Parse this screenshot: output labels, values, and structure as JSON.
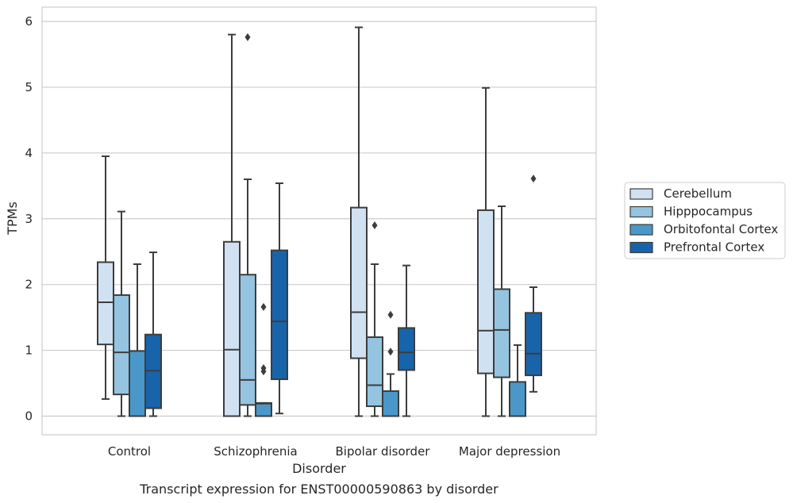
{
  "chart_data": {
    "type": "boxplot",
    "caption": "Transcript expression for ENST00000590863 by disorder",
    "xlabel": "Disorder",
    "ylabel": "TPMs",
    "ylim": [
      -0.28,
      6.22
    ],
    "yticks": [
      0,
      1,
      2,
      3,
      4,
      5,
      6
    ],
    "grid": true,
    "legend_position": "right",
    "categories": [
      "Control",
      "Schizophrenia",
      "Bipolar disorder",
      "Major depression"
    ],
    "series": [
      {
        "name": "Cerebellum",
        "color": "#d0e1f2",
        "boxes": [
          {
            "whisker_low": 0.26,
            "q1": 1.09,
            "median": 1.73,
            "q3": 2.34,
            "whisker_high": 3.95,
            "outliers": []
          },
          {
            "whisker_low": 0.0,
            "q1": 0.0,
            "median": 1.01,
            "q3": 2.65,
            "whisker_high": 5.8,
            "outliers": []
          },
          {
            "whisker_low": 0.0,
            "q1": 0.88,
            "median": 1.58,
            "q3": 3.17,
            "whisker_high": 5.91,
            "outliers": []
          },
          {
            "whisker_low": 0.0,
            "q1": 0.65,
            "median": 1.3,
            "q3": 3.13,
            "whisker_high": 4.99,
            "outliers": []
          }
        ]
      },
      {
        "name": "Hipppocampus",
        "color": "#94c4df",
        "boxes": [
          {
            "whisker_low": 0.0,
            "q1": 0.33,
            "median": 0.97,
            "q3": 1.84,
            "whisker_high": 3.11,
            "outliers": []
          },
          {
            "whisker_low": 0.0,
            "q1": 0.17,
            "median": 0.55,
            "q3": 2.15,
            "whisker_high": 3.6,
            "outliers": [
              5.76
            ]
          },
          {
            "whisker_low": 0.0,
            "q1": 0.15,
            "median": 0.47,
            "q3": 1.2,
            "whisker_high": 2.31,
            "outliers": [
              2.9
            ]
          },
          {
            "whisker_low": 0.0,
            "q1": 0.59,
            "median": 1.31,
            "q3": 1.93,
            "whisker_high": 3.19,
            "outliers": []
          }
        ]
      },
      {
        "name": "Orbitofontal Cortex",
        "color": "#4a98c9",
        "boxes": [
          {
            "whisker_low": 0.0,
            "q1": 0.0,
            "median": 0.0,
            "q3": 0.99,
            "whisker_high": 2.31,
            "outliers": []
          },
          {
            "whisker_low": 0.0,
            "q1": 0.0,
            "median": 0.19,
            "q3": 0.2,
            "whisker_high": 0.2,
            "outliers": [
              1.66,
              0.73,
              0.68
            ]
          },
          {
            "whisker_low": 0.0,
            "q1": 0.0,
            "median": 0.0,
            "q3": 0.38,
            "whisker_high": 0.64,
            "outliers": [
              1.54,
              0.98
            ]
          },
          {
            "whisker_low": 0.0,
            "q1": 0.0,
            "median": 0.0,
            "q3": 0.52,
            "whisker_high": 1.08,
            "outliers": []
          }
        ]
      },
      {
        "name": "Prefrontal Cortex",
        "color": "#1764ab",
        "boxes": [
          {
            "whisker_low": 0.0,
            "q1": 0.12,
            "median": 0.69,
            "q3": 1.24,
            "whisker_high": 2.49,
            "outliers": []
          },
          {
            "whisker_low": 0.04,
            "q1": 0.56,
            "median": 1.44,
            "q3": 2.52,
            "whisker_high": 3.54,
            "outliers": []
          },
          {
            "whisker_low": 0.0,
            "q1": 0.7,
            "median": 0.97,
            "q3": 1.34,
            "whisker_high": 2.29,
            "outliers": []
          },
          {
            "whisker_low": 0.37,
            "q1": 0.62,
            "median": 0.95,
            "q3": 1.57,
            "whisker_high": 1.96,
            "outliers": [
              3.61
            ]
          }
        ]
      }
    ]
  }
}
